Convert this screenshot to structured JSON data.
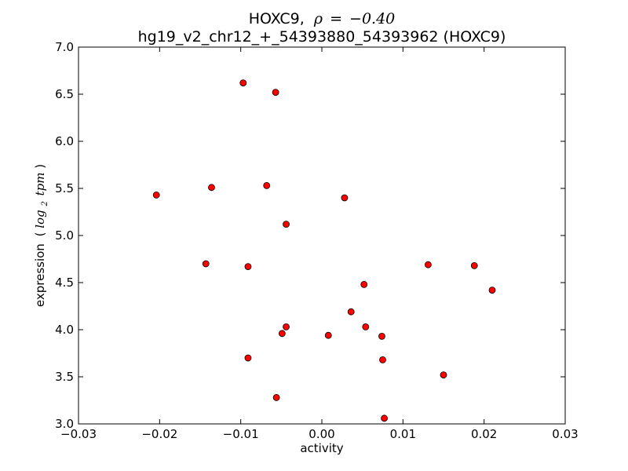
{
  "chart_data": {
    "type": "scatter",
    "title": {
      "gene": "HOXC9,",
      "rho_symbol": "ρ",
      "equals": "=",
      "rho_value": "−0.40",
      "subtitle": "hg19_v2_chr12_+_54393880_54393962 (HOXC9)"
    },
    "xlabel": "activity",
    "ylabel": {
      "text": "expression",
      "unit_open": "(",
      "unit_log": "log",
      "unit_sub": "2",
      "unit_var": "tpm",
      "unit_close": ")"
    },
    "xlim": [
      -0.03,
      0.03
    ],
    "ylim": [
      3.0,
      7.0
    ],
    "xticks": [
      {
        "value": -0.03,
        "label": "−0.03"
      },
      {
        "value": -0.02,
        "label": "−0.02"
      },
      {
        "value": -0.01,
        "label": "−0.01"
      },
      {
        "value": 0.0,
        "label": "0.00"
      },
      {
        "value": 0.01,
        "label": "0.01"
      },
      {
        "value": 0.02,
        "label": "0.02"
      },
      {
        "value": 0.03,
        "label": "0.03"
      }
    ],
    "yticks": [
      {
        "value": 3.0,
        "label": "3.0"
      },
      {
        "value": 3.5,
        "label": "3.5"
      },
      {
        "value": 4.0,
        "label": "4.0"
      },
      {
        "value": 4.5,
        "label": "4.5"
      },
      {
        "value": 5.0,
        "label": "5.0"
      },
      {
        "value": 5.5,
        "label": "5.5"
      },
      {
        "value": 6.0,
        "label": "6.0"
      },
      {
        "value": 6.5,
        "label": "6.5"
      },
      {
        "value": 7.0,
        "label": "7.0"
      }
    ],
    "grid": false,
    "marker_color": "#ff0000",
    "marker_edge_color": "#000000",
    "points": [
      {
        "x": -0.0097,
        "y": 6.62
      },
      {
        "x": -0.0057,
        "y": 6.52
      },
      {
        "x": -0.0204,
        "y": 5.43
      },
      {
        "x": -0.0136,
        "y": 5.51
      },
      {
        "x": -0.0068,
        "y": 5.53
      },
      {
        "x": 0.0028,
        "y": 5.4
      },
      {
        "x": -0.0044,
        "y": 5.12
      },
      {
        "x": -0.0143,
        "y": 4.7
      },
      {
        "x": -0.0091,
        "y": 4.67
      },
      {
        "x": 0.0131,
        "y": 4.69
      },
      {
        "x": 0.0188,
        "y": 4.68
      },
      {
        "x": 0.0052,
        "y": 4.48
      },
      {
        "x": 0.021,
        "y": 4.42
      },
      {
        "x": 0.0036,
        "y": 4.19
      },
      {
        "x": -0.0044,
        "y": 4.03
      },
      {
        "x": 0.0054,
        "y": 4.03
      },
      {
        "x": -0.0049,
        "y": 3.96
      },
      {
        "x": 0.0008,
        "y": 3.94
      },
      {
        "x": 0.0074,
        "y": 3.93
      },
      {
        "x": -0.0091,
        "y": 3.7
      },
      {
        "x": 0.0075,
        "y": 3.68
      },
      {
        "x": 0.015,
        "y": 3.52
      },
      {
        "x": -0.0056,
        "y": 3.28
      },
      {
        "x": 0.0077,
        "y": 3.06
      }
    ]
  }
}
